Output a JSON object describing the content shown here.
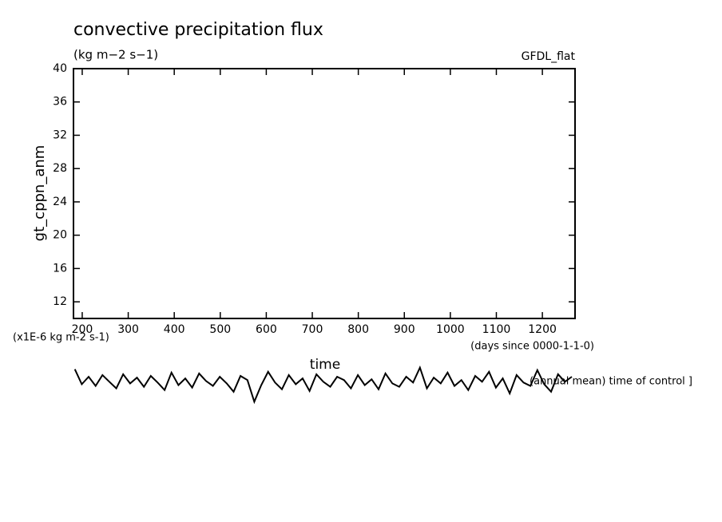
{
  "chart_data": {
    "type": "line",
    "title": "convective precipitation flux",
    "subtitle": "(kg m−2 s−1)",
    "source_label": "GFDL_flat",
    "y_label": "gt_cppn_anm",
    "y_units": "(x1E-6 kg m-2 s-1)",
    "x_label": "time",
    "x_units": "(days since 0000-1-1-0)",
    "annotation": "(annual mean) time of control ]",
    "xlim": [
      181,
      1271
    ],
    "ylim": [
      10,
      40
    ],
    "xticks": [
      200,
      300,
      400,
      500,
      600,
      700,
      800,
      900,
      1000,
      1100,
      1200
    ],
    "yticks": [
      12,
      16,
      20,
      24,
      28,
      32,
      36,
      40
    ],
    "series": [
      {
        "name": "gt_cppn_anm",
        "color": "#000000",
        "x": [
          184,
          199,
          214,
          229,
          244,
          259,
          274,
          289,
          304,
          319,
          334,
          349,
          364,
          379,
          394,
          409,
          424,
          439,
          454,
          469,
          484,
          499,
          514,
          529,
          544,
          559,
          574,
          589,
          604,
          619,
          634,
          649,
          664,
          679,
          694,
          709,
          724,
          739,
          754,
          769,
          784,
          799,
          814,
          829,
          844,
          859,
          874,
          889,
          904,
          919,
          934,
          949,
          964,
          979,
          994,
          1009,
          1024,
          1039,
          1054,
          1069,
          1084,
          1099,
          1114,
          1129,
          1144,
          1159,
          1174,
          1189,
          1204,
          1219,
          1234,
          1249,
          1264
        ],
        "values": [
          3.9,
          2.1,
          3.0,
          1.9,
          3.2,
          2.4,
          1.6,
          3.3,
          2.2,
          2.9,
          1.8,
          3.1,
          2.3,
          1.4,
          3.5,
          2.0,
          2.8,
          1.7,
          3.4,
          2.5,
          1.9,
          3.0,
          2.2,
          1.2,
          3.1,
          2.6,
          0.0,
          2.0,
          3.6,
          2.3,
          1.5,
          3.2,
          2.1,
          2.8,
          1.3,
          3.3,
          2.4,
          1.8,
          3.0,
          2.6,
          1.6,
          3.2,
          2.0,
          2.7,
          1.5,
          3.4,
          2.2,
          1.8,
          3.0,
          2.3,
          4.1,
          1.6,
          2.9,
          2.2,
          3.5,
          1.9,
          2.6,
          1.4,
          3.1,
          2.4,
          3.6,
          1.7,
          2.8,
          1.0,
          3.2,
          2.3,
          1.9,
          3.8,
          2.1,
          1.2,
          3.3,
          2.4,
          3.0
        ]
      }
    ]
  }
}
